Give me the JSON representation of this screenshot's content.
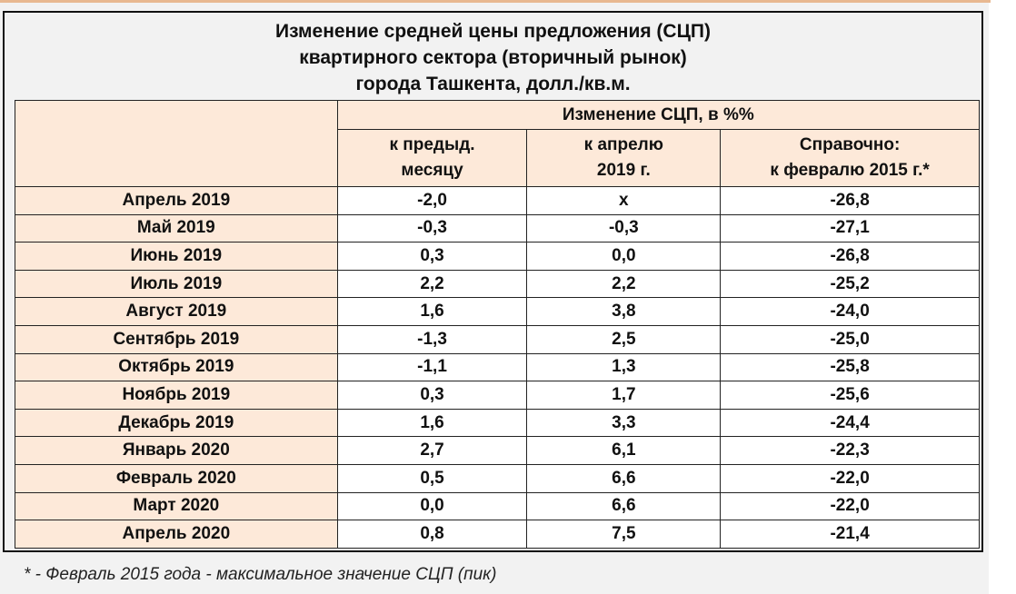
{
  "title": [
    "Изменение средней цены предложения (СЦП)",
    "квартирного сектора (вторичный рынок)",
    "города Ташкента, долл./кв.м."
  ],
  "header": {
    "group": "Изменение СЦП, в %%",
    "col1": [
      "к предыд.",
      "месяцу"
    ],
    "col2": [
      "к апрелю",
      "2019 г."
    ],
    "col3": [
      "Справочно:",
      "к февралю 2015 г.*"
    ]
  },
  "rows": [
    {
      "month": "Апрель 2019",
      "prev": "-2,0",
      "apr": "x",
      "feb": "-26,8"
    },
    {
      "month": "Май 2019",
      "prev": "-0,3",
      "apr": "-0,3",
      "feb": "-27,1"
    },
    {
      "month": "Июнь 2019",
      "prev": "0,3",
      "apr": "0,0",
      "feb": "-26,8"
    },
    {
      "month": "Июль 2019",
      "prev": "2,2",
      "apr": "2,2",
      "feb": "-25,2"
    },
    {
      "month": "Август 2019",
      "prev": "1,6",
      "apr": "3,8",
      "feb": "-24,0"
    },
    {
      "month": "Сентябрь 2019",
      "prev": "-1,3",
      "apr": "2,5",
      "feb": "-25,0"
    },
    {
      "month": "Октябрь 2019",
      "prev": "-1,1",
      "apr": "1,3",
      "feb": "-25,8"
    },
    {
      "month": "Ноябрь 2019",
      "prev": "0,3",
      "apr": "1,7",
      "feb": "-25,6"
    },
    {
      "month": "Декабрь 2019",
      "prev": "1,6",
      "apr": "3,3",
      "feb": "-24,4"
    },
    {
      "month": "Январь 2020",
      "prev": "2,7",
      "apr": "6,1",
      "feb": "-22,3"
    },
    {
      "month": "Февраль 2020",
      "prev": "0,5",
      "apr": "6,6",
      "feb": "-22,0"
    },
    {
      "month": "Март 2020",
      "prev": "0,0",
      "apr": "6,6",
      "feb": "-22,0"
    },
    {
      "month": "Апрель 2020",
      "prev": "0,8",
      "apr": "7,5",
      "feb": "-21,4"
    }
  ],
  "footnote": "* - Февраль 2015 года - максимальное значение СЦП (пик)"
}
